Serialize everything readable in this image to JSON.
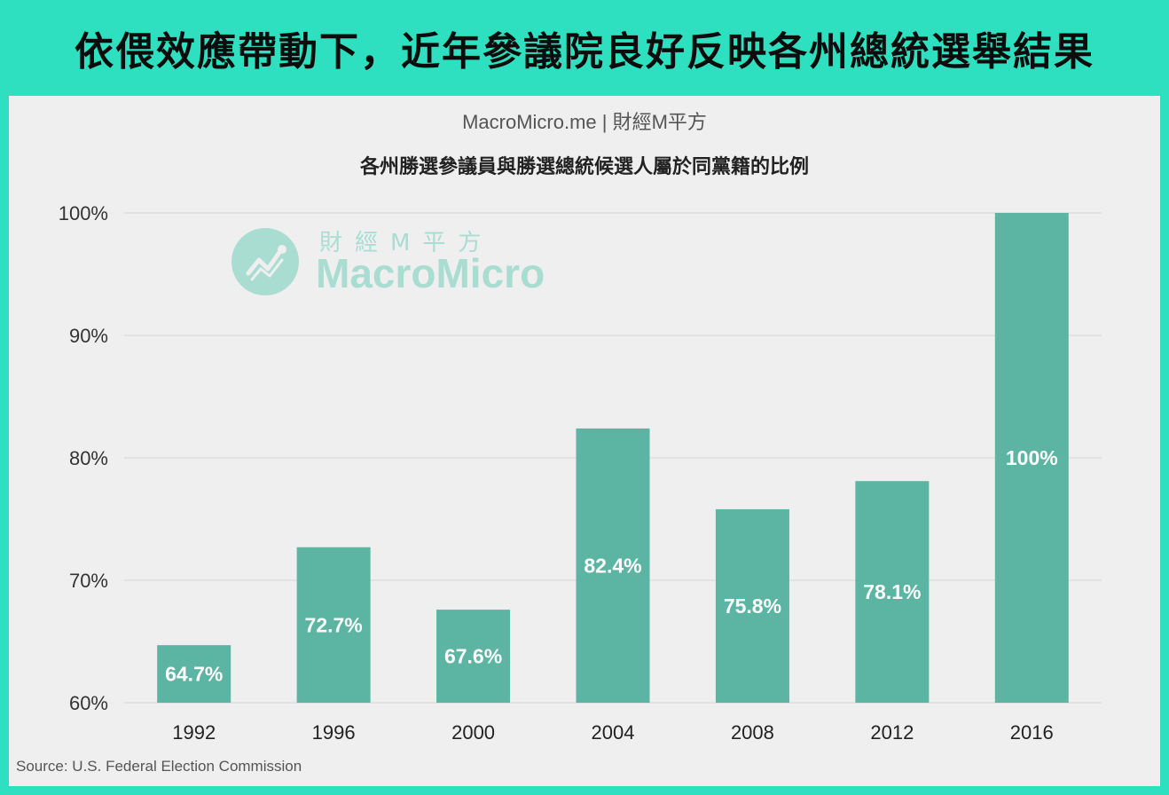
{
  "headline": "依偎效應帶動下，近年參議院良好反映各州總統選舉結果",
  "brand": "MacroMicro.me | 財經M平方",
  "watermark": {
    "cn": "財經M平方",
    "en": "MacroMicro"
  },
  "source": "Source: U.S. Federal Election Commission",
  "colors": {
    "bar": "#5bb5a2",
    "frame": "#2ee0c0",
    "panel": "#efefef",
    "grid": "#d4d4d4"
  },
  "chart_data": {
    "type": "bar",
    "title": "各州勝選參議員與勝選總統候選人屬於同黨籍的比例",
    "categories": [
      "1992",
      "1996",
      "2000",
      "2004",
      "2008",
      "2012",
      "2016"
    ],
    "values": [
      64.7,
      72.7,
      67.6,
      82.4,
      75.8,
      78.1,
      100
    ],
    "value_labels": [
      "64.7%",
      "72.7%",
      "67.6%",
      "82.4%",
      "75.8%",
      "78.1%",
      "100%"
    ],
    "yticks": [
      60,
      70,
      80,
      90,
      100
    ],
    "ytick_labels": [
      "60%",
      "70%",
      "80%",
      "90%",
      "100%"
    ],
    "ylim": [
      60,
      100
    ],
    "grid": true,
    "legend": "none"
  }
}
